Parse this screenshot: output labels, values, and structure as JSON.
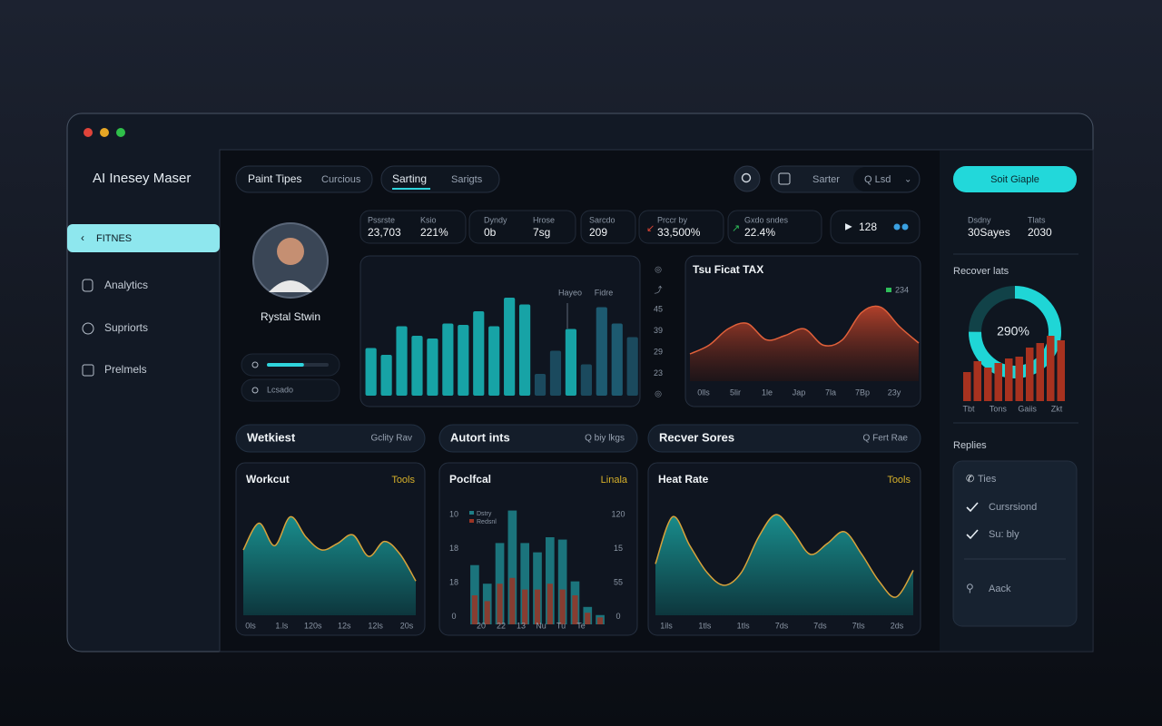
{
  "window": {
    "title": "AI Inesey Maser"
  },
  "nav": [
    "FITNES",
    "Analytics",
    "Supriorts",
    "Prelmels"
  ],
  "tabs": [
    "Paint Tipes",
    "Curcious",
    "Sarting",
    "Sarigts"
  ],
  "toolbar": [
    "Sarter",
    "Q Lsd"
  ],
  "button": "Soit Giaple",
  "profile": {
    "name": "Rystal Stwin",
    "progress": 60,
    "status": "Lcsado"
  },
  "stats": [
    {
      "label": "Pssrste",
      "value": "23,703"
    },
    {
      "label": "Ksio",
      "value": "221%"
    },
    {
      "label": "Dyndy",
      "value": "0b"
    },
    {
      "label": "Hrose",
      "value": "7sg"
    },
    {
      "label": "Sarcdo",
      "value": "209"
    },
    {
      "label": "Prccr by",
      "value": "33,500%"
    },
    {
      "label": "Gxdo sndes",
      "value": "22.4%"
    }
  ],
  "stat_badge": "128",
  "main_chart": {
    "type": "bar",
    "ylim": [
      0,
      100
    ],
    "values": [
      35,
      30,
      51,
      44,
      42,
      53,
      52,
      62,
      51,
      72,
      67,
      16,
      33,
      49,
      23,
      65,
      53,
      43
    ],
    "colors": [
      "#17a3a6",
      "#17a3a6",
      "#17a3a6",
      "#17a3a6",
      "#17a3a6",
      "#17a3a6",
      "#17a3a6",
      "#17a3a6",
      "#17a3a6",
      "#17a3a6",
      "#17a3a6",
      "#1b4a5e",
      "#1b4a5e",
      "#17a3a6",
      "#1b4a5e",
      "#1d5a70",
      "#1d5a70",
      "#1b4a5e"
    ],
    "annotations": [
      "Hayeo",
      "Fidre"
    ],
    "side_labels": [
      "45",
      "39",
      "29",
      "23"
    ]
  },
  "trend_chart": {
    "type": "area",
    "title": "Tsu Ficat TAX",
    "legend": "234",
    "color": "#b3402a",
    "ylim": [
      0,
      100
    ],
    "values": [
      25,
      33,
      48,
      53,
      38,
      42,
      48,
      33,
      38,
      63,
      68,
      50,
      35
    ],
    "x_labels": [
      "0lls",
      "5lir",
      "1le",
      "Jap",
      "7la",
      "7Bp",
      "23y"
    ]
  },
  "side_stats": [
    {
      "label": "Dsdny",
      "value": "30Sayes"
    },
    {
      "label": "Tlats",
      "value": "2030"
    }
  ],
  "recovery": {
    "type": "bar",
    "title": "Recover lats",
    "center_label": "290%",
    "ring_fill": 75,
    "ylim": [
      0,
      100
    ],
    "values": [
      32,
      44,
      37,
      42,
      47,
      49,
      59,
      64,
      72,
      67
    ],
    "color": "#a8321f",
    "x_labels": [
      "Tbt",
      "Tons",
      "Gaiis",
      "Zkt"
    ]
  },
  "replies": {
    "title": "Replies",
    "items": [
      "Ties",
      "Cursrsiond",
      "Su: bly",
      "Aack"
    ]
  },
  "sections": [
    {
      "title": "Wetkiest",
      "action": "Gclity Rav"
    },
    {
      "title": "Autort ints",
      "action": "Q biy lkgs"
    },
    {
      "title": "Recver Sores",
      "action": "Q Fert Rae"
    }
  ],
  "cards": [
    {
      "type": "area",
      "title": "Workcut",
      "tag": "Tools",
      "color": "#157f80",
      "ylim": [
        0,
        100
      ],
      "values": [
        61,
        86,
        65,
        92,
        73,
        61,
        67,
        75,
        55,
        69,
        57,
        32
      ],
      "x_labels": [
        "0ls",
        "1.ls",
        "120s",
        "12s",
        "12ls",
        "20s"
      ]
    },
    {
      "type": "bar",
      "title": "Poclfcal",
      "tag": "Linala",
      "ylim": [
        0,
        100
      ],
      "series": [
        {
          "name": "Dstry",
          "color": "#1d7e86",
          "values": [
            51,
            35,
            70,
            98,
            70,
            62,
            75,
            73,
            37,
            15,
            8
          ]
        },
        {
          "name": "Redsnl",
          "color": "#9a3424",
          "values": [
            25,
            20,
            35,
            40,
            30,
            30,
            35,
            30,
            25,
            10,
            6
          ]
        }
      ],
      "left_labels": [
        "10",
        "18",
        "18",
        "0"
      ],
      "right_labels": [
        "120",
        "15",
        "55",
        "0"
      ],
      "x_labels": [
        "20",
        "22",
        "13",
        "Nu",
        "Tu",
        "Te"
      ]
    },
    {
      "type": "area",
      "title": "Heat Rate",
      "tag": "Tools",
      "color": "#157f80",
      "ylim": [
        0,
        100
      ],
      "values": [
        48,
        92,
        65,
        40,
        28,
        40,
        73,
        94,
        78,
        57,
        67,
        78,
        57,
        32,
        17,
        42
      ],
      "x_labels": [
        "1ils",
        "1tls",
        "1tls",
        "7ds",
        "7ds",
        "7tls",
        "2ds"
      ]
    }
  ]
}
